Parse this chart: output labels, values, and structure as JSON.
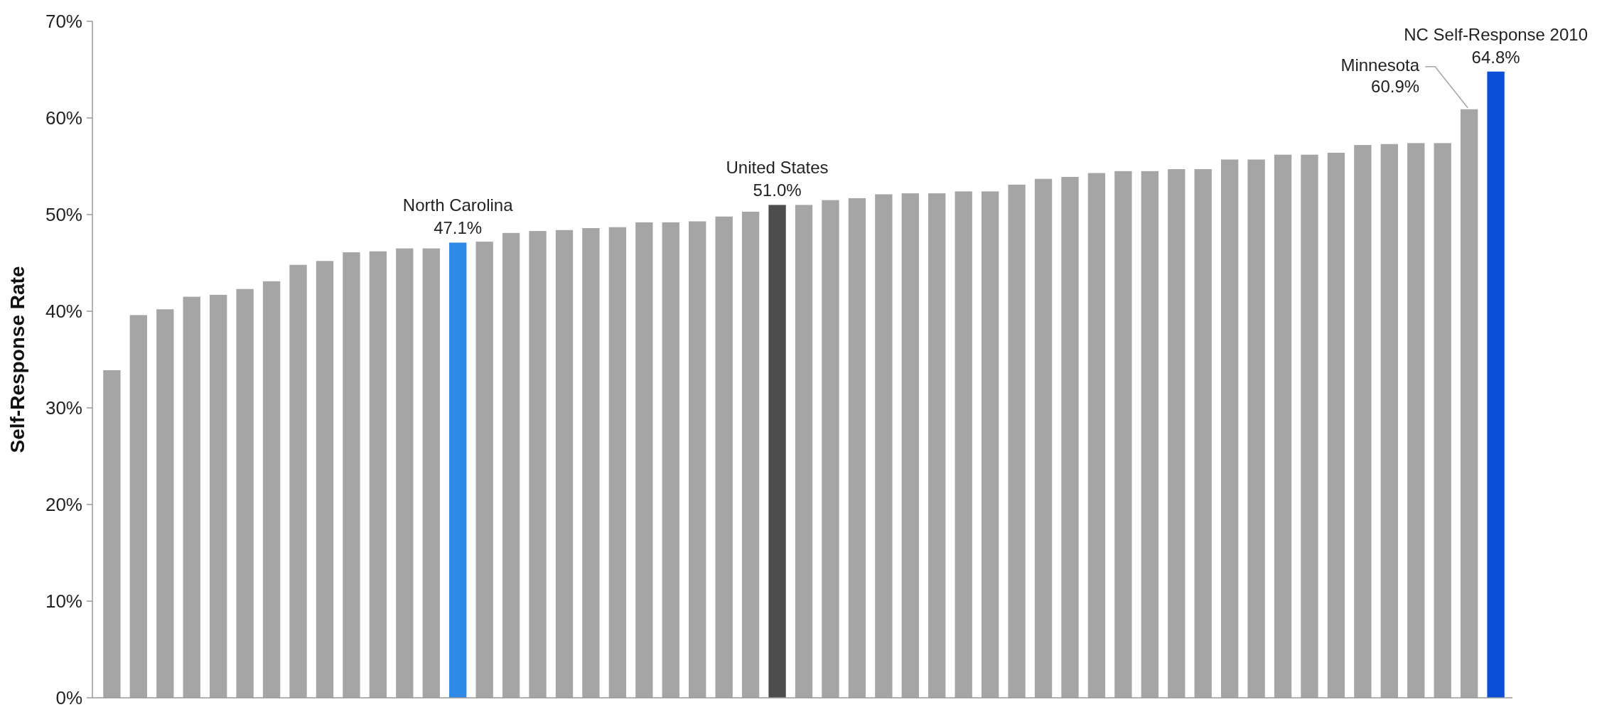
{
  "chart_data": {
    "type": "bar",
    "ylabel": "Self-Response Rate",
    "categories": [
      null,
      null,
      null,
      null,
      null,
      null,
      null,
      null,
      null,
      null,
      null,
      null,
      null,
      null,
      null,
      null,
      null,
      null,
      null,
      null,
      null,
      null,
      null,
      null,
      null,
      null,
      null,
      null,
      null,
      null,
      null,
      null,
      null,
      null,
      null,
      null,
      null,
      null,
      null,
      null,
      null,
      null,
      null,
      null,
      null,
      null,
      null,
      null,
      null,
      null,
      null,
      null,
      null
    ],
    "values": [
      33.9,
      39.6,
      40.2,
      41.5,
      41.7,
      42.3,
      43.1,
      44.8,
      45.2,
      46.1,
      46.2,
      46.5,
      46.5,
      47.1,
      47.2,
      48.1,
      48.3,
      48.4,
      48.6,
      48.7,
      49.2,
      49.2,
      49.3,
      49.8,
      50.3,
      51.0,
      51.0,
      51.5,
      51.7,
      52.1,
      52.2,
      52.2,
      52.4,
      52.4,
      53.1,
      53.7,
      53.9,
      54.3,
      54.5,
      54.5,
      54.7,
      54.7,
      55.7,
      55.7,
      56.2,
      56.2,
      56.4,
      57.2,
      57.3,
      57.4,
      57.4,
      60.9,
      64.8
    ],
    "colors": [
      "#a5a5a5",
      "#a5a5a5",
      "#a5a5a5",
      "#a5a5a5",
      "#a5a5a5",
      "#a5a5a5",
      "#a5a5a5",
      "#a5a5a5",
      "#a5a5a5",
      "#a5a5a5",
      "#a5a5a5",
      "#a5a5a5",
      "#a5a5a5",
      "#2e8ae6",
      "#a5a5a5",
      "#a5a5a5",
      "#a5a5a5",
      "#a5a5a5",
      "#a5a5a5",
      "#a5a5a5",
      "#a5a5a5",
      "#a5a5a5",
      "#a5a5a5",
      "#a5a5a5",
      "#a5a5a5",
      "#4d4d4d",
      "#a5a5a5",
      "#a5a5a5",
      "#a5a5a5",
      "#a5a5a5",
      "#a5a5a5",
      "#a5a5a5",
      "#a5a5a5",
      "#a5a5a5",
      "#a5a5a5",
      "#a5a5a5",
      "#a5a5a5",
      "#a5a5a5",
      "#a5a5a5",
      "#a5a5a5",
      "#a5a5a5",
      "#a5a5a5",
      "#a5a5a5",
      "#a5a5a5",
      "#a5a5a5",
      "#a5a5a5",
      "#a5a5a5",
      "#a5a5a5",
      "#a5a5a5",
      "#a5a5a5",
      "#a5a5a5",
      "#a5a5a5",
      "#0b4fd6"
    ],
    "value_labels": [
      null,
      null,
      null,
      null,
      null,
      null,
      null,
      null,
      null,
      null,
      null,
      null,
      null,
      "North Carolina\n47.1%",
      null,
      null,
      null,
      null,
      null,
      null,
      null,
      null,
      null,
      null,
      null,
      "United States\n51.0%",
      null,
      null,
      null,
      null,
      null,
      null,
      null,
      null,
      null,
      null,
      null,
      null,
      null,
      null,
      null,
      null,
      null,
      null,
      null,
      null,
      null,
      null,
      null,
      null,
      null,
      "Minnesota\n60.9%",
      "NC Self-Response 2010\n64.8%"
    ],
    "ylim": [
      0,
      70
    ],
    "yticks": [
      {
        "value": 0,
        "label": "0%"
      },
      {
        "value": 10,
        "label": "10%"
      },
      {
        "value": 20,
        "label": "20%"
      },
      {
        "value": 30,
        "label": "30%"
      },
      {
        "value": 40,
        "label": "40%"
      },
      {
        "value": 50,
        "label": "50%"
      },
      {
        "value": 60,
        "label": "60%"
      },
      {
        "value": 70,
        "label": "70%"
      }
    ],
    "grid": false
  }
}
